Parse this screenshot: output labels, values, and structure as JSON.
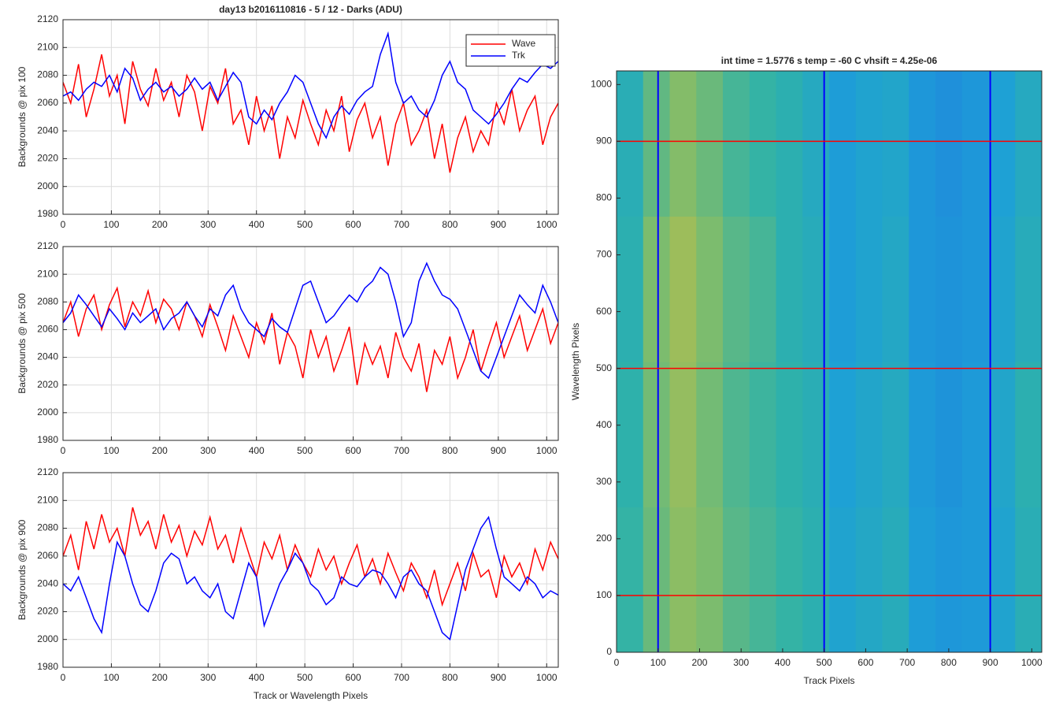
{
  "chart_data": [
    {
      "type": "line",
      "title": "day13 b2016110816 - 5 / 12 - Darks (ADU)",
      "y_label": "Backgrounds @ pix 100",
      "x": [
        0,
        16,
        32,
        48,
        64,
        80,
        96,
        112,
        128,
        144,
        160,
        176,
        192,
        208,
        224,
        240,
        256,
        272,
        288,
        304,
        320,
        336,
        352,
        368,
        384,
        400,
        416,
        432,
        448,
        464,
        480,
        496,
        512,
        528,
        544,
        560,
        576,
        592,
        608,
        624,
        640,
        656,
        672,
        688,
        704,
        720,
        736,
        752,
        768,
        784,
        800,
        816,
        832,
        848,
        864,
        880,
        896,
        912,
        928,
        944,
        960,
        976,
        992,
        1008,
        1024
      ],
      "series": [
        {
          "name": "Wave",
          "color": "#ff0000",
          "values": [
            2075,
            2060,
            2088,
            2050,
            2070,
            2095,
            2065,
            2080,
            2045,
            2090,
            2070,
            2058,
            2085,
            2062,
            2075,
            2050,
            2080,
            2068,
            2040,
            2072,
            2060,
            2085,
            2045,
            2055,
            2030,
            2065,
            2040,
            2058,
            2020,
            2050,
            2035,
            2062,
            2045,
            2030,
            2055,
            2040,
            2065,
            2025,
            2048,
            2060,
            2035,
            2050,
            2015,
            2045,
            2060,
            2030,
            2040,
            2055,
            2020,
            2045,
            2010,
            2035,
            2050,
            2025,
            2040,
            2030,
            2060,
            2045,
            2070,
            2040,
            2055,
            2065,
            2030,
            2050,
            2060
          ]
        },
        {
          "name": "Trk",
          "color": "#0000ff",
          "values": [
            2065,
            2068,
            2062,
            2070,
            2075,
            2072,
            2080,
            2068,
            2085,
            2078,
            2062,
            2070,
            2075,
            2068,
            2072,
            2065,
            2070,
            2078,
            2070,
            2075,
            2062,
            2072,
            2082,
            2075,
            2050,
            2045,
            2055,
            2048,
            2060,
            2068,
            2080,
            2075,
            2060,
            2045,
            2035,
            2050,
            2058,
            2052,
            2062,
            2068,
            2072,
            2095,
            2110,
            2075,
            2060,
            2065,
            2055,
            2050,
            2062,
            2080,
            2090,
            2075,
            2070,
            2055,
            2050,
            2045,
            2052,
            2060,
            2070,
            2078,
            2075,
            2082,
            2088,
            2085,
            2090
          ]
        }
      ],
      "xlim": [
        0,
        1024
      ],
      "xticks": [
        0,
        100,
        200,
        300,
        400,
        500,
        600,
        700,
        800,
        900,
        1000
      ],
      "ylim": [
        1980,
        2120
      ],
      "yticks": [
        1980,
        2000,
        2020,
        2040,
        2060,
        2080,
        2100,
        2120
      ],
      "grid": true,
      "legend": "northeast"
    },
    {
      "type": "line",
      "y_label": "Backgrounds @ pix 500",
      "x": [
        0,
        16,
        32,
        48,
        64,
        80,
        96,
        112,
        128,
        144,
        160,
        176,
        192,
        208,
        224,
        240,
        256,
        272,
        288,
        304,
        320,
        336,
        352,
        368,
        384,
        400,
        416,
        432,
        448,
        464,
        480,
        496,
        512,
        528,
        544,
        560,
        576,
        592,
        608,
        624,
        640,
        656,
        672,
        688,
        704,
        720,
        736,
        752,
        768,
        784,
        800,
        816,
        832,
        848,
        864,
        880,
        896,
        912,
        928,
        944,
        960,
        976,
        992,
        1008,
        1024
      ],
      "series": [
        {
          "color": "#ff0000",
          "values": [
            2065,
            2080,
            2055,
            2075,
            2085,
            2060,
            2078,
            2090,
            2062,
            2080,
            2070,
            2088,
            2065,
            2082,
            2075,
            2060,
            2080,
            2070,
            2055,
            2078,
            2062,
            2045,
            2070,
            2055,
            2040,
            2065,
            2050,
            2072,
            2035,
            2058,
            2048,
            2025,
            2060,
            2040,
            2055,
            2030,
            2045,
            2062,
            2020,
            2050,
            2035,
            2048,
            2025,
            2058,
            2040,
            2030,
            2050,
            2015,
            2045,
            2035,
            2055,
            2025,
            2040,
            2060,
            2030,
            2048,
            2065,
            2040,
            2055,
            2070,
            2045,
            2060,
            2075,
            2050,
            2065
          ]
        },
        {
          "color": "#0000ff",
          "values": [
            2065,
            2072,
            2085,
            2078,
            2070,
            2062,
            2075,
            2068,
            2060,
            2072,
            2065,
            2070,
            2075,
            2060,
            2068,
            2072,
            2080,
            2070,
            2062,
            2075,
            2070,
            2085,
            2092,
            2075,
            2065,
            2060,
            2055,
            2068,
            2062,
            2058,
            2075,
            2092,
            2095,
            2080,
            2065,
            2070,
            2078,
            2085,
            2080,
            2090,
            2095,
            2105,
            2100,
            2080,
            2055,
            2065,
            2095,
            2108,
            2095,
            2085,
            2082,
            2075,
            2060,
            2045,
            2030,
            2025,
            2040,
            2055,
            2070,
            2085,
            2078,
            2072,
            2092,
            2080,
            2065
          ]
        }
      ],
      "xlim": [
        0,
        1024
      ],
      "xticks": [
        0,
        100,
        200,
        300,
        400,
        500,
        600,
        700,
        800,
        900,
        1000
      ],
      "ylim": [
        1980,
        2120
      ],
      "yticks": [
        1980,
        2000,
        2020,
        2040,
        2060,
        2080,
        2100,
        2120
      ],
      "grid": true
    },
    {
      "type": "line",
      "y_label": "Backgrounds @ pix 900",
      "x_label": "Track or Wavelength Pixels",
      "x": [
        0,
        16,
        32,
        48,
        64,
        80,
        96,
        112,
        128,
        144,
        160,
        176,
        192,
        208,
        224,
        240,
        256,
        272,
        288,
        304,
        320,
        336,
        352,
        368,
        384,
        400,
        416,
        432,
        448,
        464,
        480,
        496,
        512,
        528,
        544,
        560,
        576,
        592,
        608,
        624,
        640,
        656,
        672,
        688,
        704,
        720,
        736,
        752,
        768,
        784,
        800,
        816,
        832,
        848,
        864,
        880,
        896,
        912,
        928,
        944,
        960,
        976,
        992,
        1008,
        1024
      ],
      "series": [
        {
          "color": "#ff0000",
          "values": [
            2060,
            2075,
            2050,
            2085,
            2065,
            2090,
            2070,
            2080,
            2060,
            2095,
            2075,
            2085,
            2065,
            2090,
            2070,
            2082,
            2060,
            2078,
            2068,
            2088,
            2065,
            2075,
            2055,
            2080,
            2062,
            2045,
            2070,
            2058,
            2075,
            2050,
            2068,
            2055,
            2045,
            2065,
            2050,
            2060,
            2040,
            2055,
            2068,
            2045,
            2058,
            2040,
            2062,
            2048,
            2035,
            2055,
            2045,
            2030,
            2050,
            2025,
            2040,
            2055,
            2035,
            2062,
            2045,
            2050,
            2030,
            2060,
            2045,
            2055,
            2040,
            2065,
            2050,
            2070,
            2058
          ]
        },
        {
          "color": "#0000ff",
          "values": [
            2040,
            2035,
            2045,
            2030,
            2015,
            2005,
            2040,
            2070,
            2060,
            2040,
            2025,
            2020,
            2035,
            2055,
            2062,
            2058,
            2040,
            2045,
            2035,
            2030,
            2040,
            2020,
            2015,
            2035,
            2055,
            2045,
            2010,
            2025,
            2040,
            2050,
            2062,
            2055,
            2040,
            2035,
            2025,
            2030,
            2045,
            2040,
            2038,
            2045,
            2050,
            2048,
            2040,
            2030,
            2045,
            2050,
            2040,
            2035,
            2020,
            2005,
            2000,
            2025,
            2050,
            2065,
            2080,
            2088,
            2065,
            2045,
            2040,
            2035,
            2045,
            2040,
            2030,
            2035,
            2032
          ]
        }
      ],
      "xlim": [
        0,
        1024
      ],
      "xticks": [
        0,
        100,
        200,
        300,
        400,
        500,
        600,
        700,
        800,
        900,
        1000
      ],
      "ylim": [
        1980,
        2120
      ],
      "yticks": [
        1980,
        2000,
        2020,
        2040,
        2060,
        2080,
        2100,
        2120
      ],
      "grid": true
    },
    {
      "type": "heatmap",
      "title": "int time = 1.5776 s    temp = -60 C    vhsift = 4.25e-06",
      "x_label": "Track Pixels",
      "y_label": "Wavelength Pixels",
      "x_edges": [
        0,
        64,
        128,
        192,
        256,
        320,
        384,
        448,
        512,
        576,
        640,
        704,
        768,
        832,
        896,
        960,
        1024
      ],
      "y_edges": [
        0,
        256,
        512,
        768,
        1024
      ],
      "z": [
        [
          2058,
          2064,
          2068,
          2066,
          2062,
          2060,
          2058,
          2056,
          2050,
          2052,
          2054,
          2048,
          2046,
          2047,
          2050,
          2055
        ],
        [
          2057,
          2065,
          2069,
          2065,
          2061,
          2059,
          2057,
          2055,
          2049,
          2051,
          2053,
          2047,
          2045,
          2047,
          2051,
          2056
        ],
        [
          2056,
          2066,
          2070,
          2066,
          2062,
          2060,
          2056,
          2054,
          2048,
          2050,
          2052,
          2046,
          2045,
          2046,
          2050,
          2054
        ],
        [
          2055,
          2063,
          2067,
          2064,
          2060,
          2058,
          2056,
          2053,
          2048,
          2050,
          2051,
          2046,
          2044,
          2046,
          2049,
          2053
        ]
      ],
      "clim": [
        2040,
        2075
      ],
      "colormap": [
        "#1f82de",
        "#1ea0d6",
        "#2fb2a8",
        "#7ebc6c",
        "#c6bf45"
      ],
      "vlines": [
        100,
        500,
        900
      ],
      "vline_color": "#0000ff",
      "hlines": [
        100,
        500,
        900
      ],
      "hline_color": "#ff0000",
      "xlim": [
        0,
        1024
      ],
      "xticks": [
        0,
        100,
        200,
        300,
        400,
        500,
        600,
        700,
        800,
        900,
        1000
      ],
      "ylim": [
        0,
        1024
      ],
      "yticks": [
        0,
        100,
        200,
        300,
        400,
        500,
        600,
        700,
        800,
        900,
        1000
      ]
    }
  ]
}
